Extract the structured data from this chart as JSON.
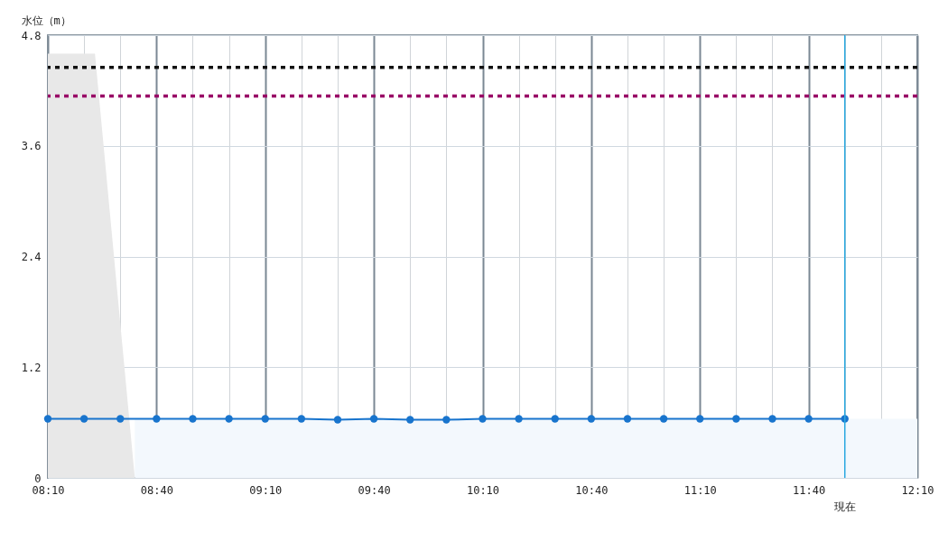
{
  "chart_data": {
    "type": "line",
    "ylabel": "水位（m）",
    "x": [
      8.1667,
      8.3333,
      8.5,
      8.6667,
      8.8333,
      9,
      9.1667,
      9.3333,
      9.5,
      9.6667,
      9.8333,
      10,
      10.1667,
      10.3333,
      10.5,
      10.6667,
      10.8333,
      11,
      11.1667,
      11.3333,
      11.5,
      11.6667,
      11.8333
    ],
    "series": [
      {
        "type": "area",
        "color": "#f3f8fd",
        "x": [
          8.5667,
          12.1667
        ],
        "values": [
          0.64,
          0.64
        ]
      },
      {
        "type": "area",
        "color": "#e8e8e8",
        "x": [
          8.1667,
          8.3833,
          8.5667
        ],
        "values": [
          4.6,
          4.6,
          0
        ]
      },
      {
        "color": "#1874cd",
        "marker": "circle",
        "values": [
          0.64,
          0.64,
          0.64,
          0.64,
          0.64,
          0.64,
          0.64,
          0.64,
          0.63,
          0.64,
          0.63,
          0.63,
          0.64,
          0.64,
          0.64,
          0.64,
          0.64,
          0.64,
          0.64,
          0.64,
          0.64,
          0.64,
          0.64
        ]
      }
    ],
    "xlim": [
      8.1667,
      12.1667
    ],
    "xticks": [
      {
        "value": 8.1667,
        "label": "08:10"
      },
      {
        "value": 8.3333,
        "label": null
      },
      {
        "value": 8.5,
        "label": null
      },
      {
        "value": 8.6667,
        "label": "08:40"
      },
      {
        "value": 8.8333,
        "label": null
      },
      {
        "value": 9,
        "label": null
      },
      {
        "value": 9.1667,
        "label": "09:10"
      },
      {
        "value": 9.3333,
        "label": null
      },
      {
        "value": 9.5,
        "label": null
      },
      {
        "value": 9.6667,
        "label": "09:40"
      },
      {
        "value": 9.8333,
        "label": null
      },
      {
        "value": 10,
        "label": null
      },
      {
        "value": 10.1667,
        "label": "10:10"
      },
      {
        "value": 10.3333,
        "label": null
      },
      {
        "value": 10.5,
        "label": null
      },
      {
        "value": 10.6667,
        "label": "10:40"
      },
      {
        "value": 10.8333,
        "label": null
      },
      {
        "value": 11,
        "label": null
      },
      {
        "value": 11.1667,
        "label": "11:10"
      },
      {
        "value": 11.3333,
        "label": null
      },
      {
        "value": 11.5,
        "label": null
      },
      {
        "value": 11.6667,
        "label": "11:40"
      },
      {
        "value": 11.8333,
        "label": null
      },
      {
        "value": 12,
        "label": null
      },
      {
        "value": 12.1667,
        "label": "12:10"
      }
    ],
    "ylim": [
      0,
      4.8
    ],
    "yticks": [
      0,
      1.2,
      2.4,
      3.6,
      4.8
    ],
    "ref_lines": [
      {
        "axis": "y",
        "value": 4.45,
        "color": "#111111",
        "line_style": "dotted"
      },
      {
        "axis": "y",
        "value": 4.14,
        "color": "#990066",
        "line_style": "dotted"
      },
      {
        "axis": "x",
        "value": 11.8333,
        "label": "現在",
        "color": "#29a8e0",
        "line_style": "solid"
      }
    ],
    "grid": true,
    "line_style": "solid"
  }
}
